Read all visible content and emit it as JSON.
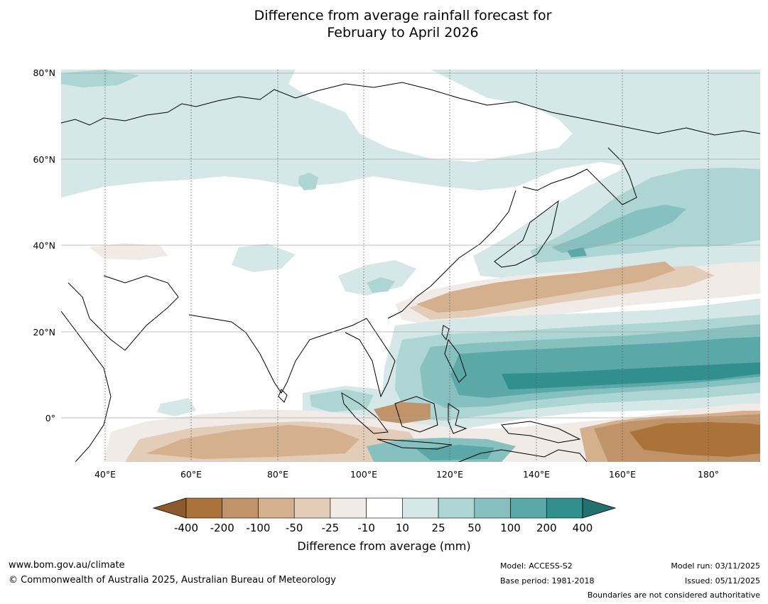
{
  "title": {
    "line1": "Difference from average rainfall forecast for",
    "line2": "February to April 2026"
  },
  "map": {
    "lat_labels": [
      "80°N",
      "60°N",
      "40°N",
      "20°N",
      "0°"
    ],
    "lon_labels": [
      "40°E",
      "60°E",
      "80°E",
      "100°E",
      "120°E",
      "140°E",
      "160°E",
      "180°"
    ],
    "lat_range": [
      -10,
      80
    ],
    "lon_range": [
      30,
      192
    ]
  },
  "colorbar": {
    "title": "Difference from average (mm)",
    "ticks": [
      "-400",
      "-200",
      "-100",
      "-50",
      "-25",
      "-10",
      "10",
      "25",
      "50",
      "100",
      "200",
      "400"
    ],
    "colors": {
      "under": "#8c5a2d",
      "bins": [
        "#ab733a",
        "#c19369",
        "#d4b08e",
        "#e3cdb8",
        "#f1ebe7",
        "#ffffff",
        "#d5e8e7",
        "#acd5d4",
        "#86c1c0",
        "#5ba8a8",
        "#31908e"
      ],
      "over": "#21716f"
    }
  },
  "footer": {
    "website": "www.bom.gov.au/climate",
    "copyright": "© Commonwealth of Australia 2025, Australian Bureau of Meteorology",
    "model": "Model: ACCESS-S2",
    "base_period": "Base period: 1981-2018",
    "model_run": "Model run: 03/11/2025",
    "issued": "Issued: 05/11/2025",
    "disclaimer": "Boundaries are not considered authoritative"
  }
}
